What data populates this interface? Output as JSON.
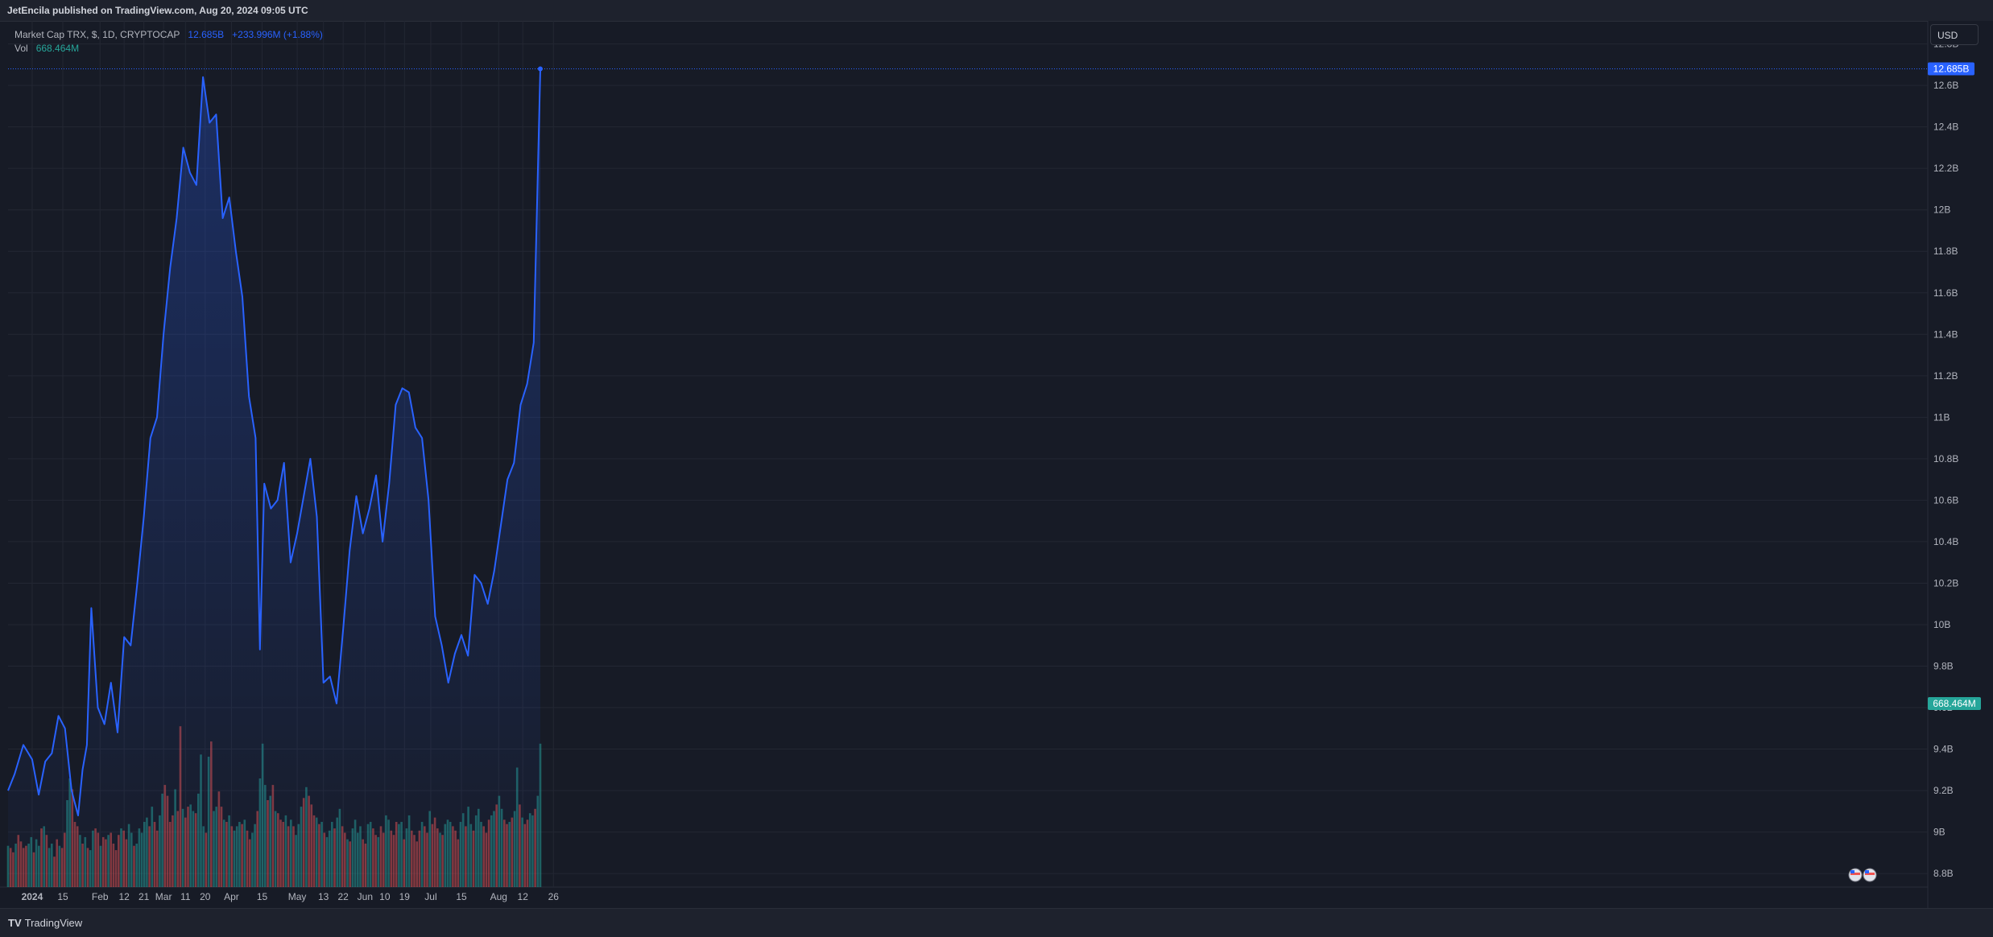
{
  "header": {
    "publisher": "JetEncila published on TradingView.com, Aug 20, 2024 09:05 UTC"
  },
  "legend": {
    "symbol": "Market Cap TRX, $, 1D, CRYPTOCAP",
    "value": "12.685B",
    "change": "+233.996M (+1.88%)",
    "vol_label": "Vol",
    "vol_value": "668.464M"
  },
  "currency_button": "USD",
  "footer": {
    "logo": "TV",
    "brand": "TradingView"
  },
  "colors": {
    "line": "#2962ff",
    "up": "#26a69a",
    "down": "#ef5350",
    "bg": "#171b26",
    "grid": "#232733"
  },
  "chart_data": {
    "type": "area",
    "title": "Market Cap TRX, $, 1D, CRYPTOCAP",
    "x_range": [
      "2023-12-21",
      "2024-08-20"
    ],
    "y_ticks": [
      "8.8B",
      "9B",
      "9.2B",
      "9.4B",
      "9.6B",
      "9.8B",
      "10B",
      "10.2B",
      "10.4B",
      "10.6B",
      "10.8B",
      "11B",
      "11.2B",
      "11.4B",
      "11.6B",
      "11.8B",
      "12B",
      "12.2B",
      "12.4B",
      "12.6B",
      "12.8B"
    ],
    "y_tick_values": [
      8.8,
      9.0,
      9.2,
      9.4,
      9.6,
      9.8,
      10.0,
      10.2,
      10.4,
      10.6,
      10.8,
      11.0,
      11.2,
      11.4,
      11.6,
      11.8,
      12.0,
      12.2,
      12.4,
      12.6,
      12.8
    ],
    "y_range": [
      8.75,
      12.88
    ],
    "x_ticks": [
      {
        "label": "2024",
        "date": "2024-01-01"
      },
      {
        "label": "15",
        "date": "2024-01-15"
      },
      {
        "label": "Feb",
        "date": "2024-02-01"
      },
      {
        "label": "12",
        "date": "2024-02-12"
      },
      {
        "label": "21",
        "date": "2024-02-21"
      },
      {
        "label": "Mar",
        "date": "2024-03-01"
      },
      {
        "label": "11",
        "date": "2024-03-11"
      },
      {
        "label": "20",
        "date": "2024-03-20"
      },
      {
        "label": "Apr",
        "date": "2024-04-01"
      },
      {
        "label": "15",
        "date": "2024-04-15"
      },
      {
        "label": "May",
        "date": "2024-05-01"
      },
      {
        "label": "13",
        "date": "2024-05-13"
      },
      {
        "label": "22",
        "date": "2024-05-22"
      },
      {
        "label": "Jun",
        "date": "2024-06-01"
      },
      {
        "label": "10",
        "date": "2024-06-10"
      },
      {
        "label": "19",
        "date": "2024-06-19"
      },
      {
        "label": "Jul",
        "date": "2024-07-01"
      },
      {
        "label": "15",
        "date": "2024-07-15"
      },
      {
        "label": "Aug",
        "date": "2024-08-01"
      },
      {
        "label": "12",
        "date": "2024-08-12"
      },
      {
        "label": "26",
        "date": "2024-08-26"
      }
    ],
    "series": [
      {
        "name": "Market Cap TRX",
        "unit": "B",
        "points": [
          [
            "2023-12-21",
            9.2
          ],
          [
            "2023-12-24",
            9.28
          ],
          [
            "2023-12-28",
            9.42
          ],
          [
            "2024-01-01",
            9.35
          ],
          [
            "2024-01-04",
            9.18
          ],
          [
            "2024-01-07",
            9.34
          ],
          [
            "2024-01-10",
            9.38
          ],
          [
            "2024-01-13",
            9.56
          ],
          [
            "2024-01-16",
            9.5
          ],
          [
            "2024-01-19",
            9.2
          ],
          [
            "2024-01-22",
            9.08
          ],
          [
            "2024-01-24",
            9.3
          ],
          [
            "2024-01-26",
            9.42
          ],
          [
            "2024-01-28",
            10.08
          ],
          [
            "2024-01-31",
            9.6
          ],
          [
            "2024-02-03",
            9.52
          ],
          [
            "2024-02-06",
            9.72
          ],
          [
            "2024-02-09",
            9.48
          ],
          [
            "2024-02-12",
            9.94
          ],
          [
            "2024-02-15",
            9.9
          ],
          [
            "2024-02-18",
            10.2
          ],
          [
            "2024-02-21",
            10.52
          ],
          [
            "2024-02-24",
            10.9
          ],
          [
            "2024-02-27",
            11.0
          ],
          [
            "2024-03-01",
            11.4
          ],
          [
            "2024-03-04",
            11.72
          ],
          [
            "2024-03-07",
            11.96
          ],
          [
            "2024-03-10",
            12.3
          ],
          [
            "2024-03-13",
            12.18
          ],
          [
            "2024-03-16",
            12.12
          ],
          [
            "2024-03-19",
            12.64
          ],
          [
            "2024-03-22",
            12.42
          ],
          [
            "2024-03-25",
            12.46
          ],
          [
            "2024-03-28",
            11.96
          ],
          [
            "2024-03-31",
            12.06
          ],
          [
            "2024-04-03",
            11.8
          ],
          [
            "2024-04-06",
            11.58
          ],
          [
            "2024-04-09",
            11.1
          ],
          [
            "2024-04-12",
            10.9
          ],
          [
            "2024-04-14",
            9.88
          ],
          [
            "2024-04-16",
            10.68
          ],
          [
            "2024-04-19",
            10.56
          ],
          [
            "2024-04-22",
            10.6
          ],
          [
            "2024-04-25",
            10.78
          ],
          [
            "2024-04-28",
            10.3
          ],
          [
            "2024-05-01",
            10.44
          ],
          [
            "2024-05-04",
            10.62
          ],
          [
            "2024-05-07",
            10.8
          ],
          [
            "2024-05-10",
            10.52
          ],
          [
            "2024-05-13",
            9.72
          ],
          [
            "2024-05-16",
            9.75
          ],
          [
            "2024-05-19",
            9.62
          ],
          [
            "2024-05-22",
            9.98
          ],
          [
            "2024-05-25",
            10.36
          ],
          [
            "2024-05-28",
            10.62
          ],
          [
            "2024-05-31",
            10.44
          ],
          [
            "2024-06-03",
            10.56
          ],
          [
            "2024-06-06",
            10.72
          ],
          [
            "2024-06-09",
            10.4
          ],
          [
            "2024-06-12",
            10.68
          ],
          [
            "2024-06-15",
            11.06
          ],
          [
            "2024-06-18",
            11.14
          ],
          [
            "2024-06-21",
            11.12
          ],
          [
            "2024-06-24",
            10.95
          ],
          [
            "2024-06-27",
            10.9
          ],
          [
            "2024-06-30",
            10.6
          ],
          [
            "2024-07-03",
            10.04
          ],
          [
            "2024-07-06",
            9.9
          ],
          [
            "2024-07-09",
            9.72
          ],
          [
            "2024-07-12",
            9.86
          ],
          [
            "2024-07-15",
            9.95
          ],
          [
            "2024-07-18",
            9.85
          ],
          [
            "2024-07-21",
            10.24
          ],
          [
            "2024-07-24",
            10.2
          ],
          [
            "2024-07-27",
            10.1
          ],
          [
            "2024-07-30",
            10.26
          ],
          [
            "2024-08-02",
            10.48
          ],
          [
            "2024-08-05",
            10.7
          ],
          [
            "2024-08-08",
            10.78
          ],
          [
            "2024-08-11",
            11.06
          ],
          [
            "2024-08-14",
            11.16
          ],
          [
            "2024-08-17",
            11.36
          ],
          [
            "2024-08-20",
            12.68
          ]
        ]
      }
    ],
    "volume": {
      "name": "Vol",
      "last": "668.464M",
      "scale_note": "relative bar heights",
      "bars": [
        0.19,
        0.18,
        0.16,
        0.2,
        0.24,
        0.21,
        0.18,
        0.19,
        0.2,
        0.23,
        0.16,
        0.22,
        0.19,
        0.27,
        0.28,
        0.24,
        0.18,
        0.2,
        0.14,
        0.22,
        0.19,
        0.18,
        0.25,
        0.4,
        0.5,
        0.45,
        0.3,
        0.28,
        0.24,
        0.2,
        0.23,
        0.18,
        0.17,
        0.26,
        0.27,
        0.25,
        0.19,
        0.23,
        0.22,
        0.24,
        0.25,
        0.2,
        0.17,
        0.24,
        0.27,
        0.26,
        0.22,
        0.29,
        0.25,
        0.19,
        0.2,
        0.27,
        0.25,
        0.3,
        0.32,
        0.28,
        0.37,
        0.3,
        0.26,
        0.33,
        0.43,
        0.47,
        0.42,
        0.3,
        0.33,
        0.45,
        0.35,
        0.74,
        0.36,
        0.32,
        0.37,
        0.38,
        0.35,
        0.34,
        0.43,
        0.61,
        0.28,
        0.25,
        0.6,
        0.67,
        0.35,
        0.37,
        0.44,
        0.37,
        0.31,
        0.3,
        0.33,
        0.28,
        0.26,
        0.28,
        0.3,
        0.29,
        0.31,
        0.26,
        0.22,
        0.25,
        0.29,
        0.35,
        0.5,
        0.66,
        0.47,
        0.4,
        0.42,
        0.47,
        0.35,
        0.34,
        0.31,
        0.3,
        0.33,
        0.28,
        0.31,
        0.28,
        0.24,
        0.29,
        0.37,
        0.41,
        0.46,
        0.42,
        0.38,
        0.33,
        0.32,
        0.29,
        0.3,
        0.25,
        0.23,
        0.26,
        0.3,
        0.27,
        0.32,
        0.36,
        0.28,
        0.25,
        0.22,
        0.21,
        0.27,
        0.31,
        0.25,
        0.28,
        0.22,
        0.2,
        0.29,
        0.3,
        0.27,
        0.24,
        0.23,
        0.28,
        0.25,
        0.33,
        0.31,
        0.26,
        0.24,
        0.3,
        0.29,
        0.3,
        0.22,
        0.27,
        0.33,
        0.26,
        0.24,
        0.21,
        0.26,
        0.3,
        0.28,
        0.25,
        0.35,
        0.29,
        0.32,
        0.27,
        0.25,
        0.24,
        0.29,
        0.31,
        0.3,
        0.28,
        0.26,
        0.22,
        0.3,
        0.34,
        0.28,
        0.37,
        0.29,
        0.26,
        0.33,
        0.36,
        0.3,
        0.28,
        0.25,
        0.31,
        0.33,
        0.35,
        0.38,
        0.42,
        0.36,
        0.31,
        0.29,
        0.3,
        0.32,
        0.35,
        0.55,
        0.38,
        0.32,
        0.29,
        0.31,
        0.34,
        0.33,
        0.36,
        0.42,
        0.66
      ]
    }
  }
}
